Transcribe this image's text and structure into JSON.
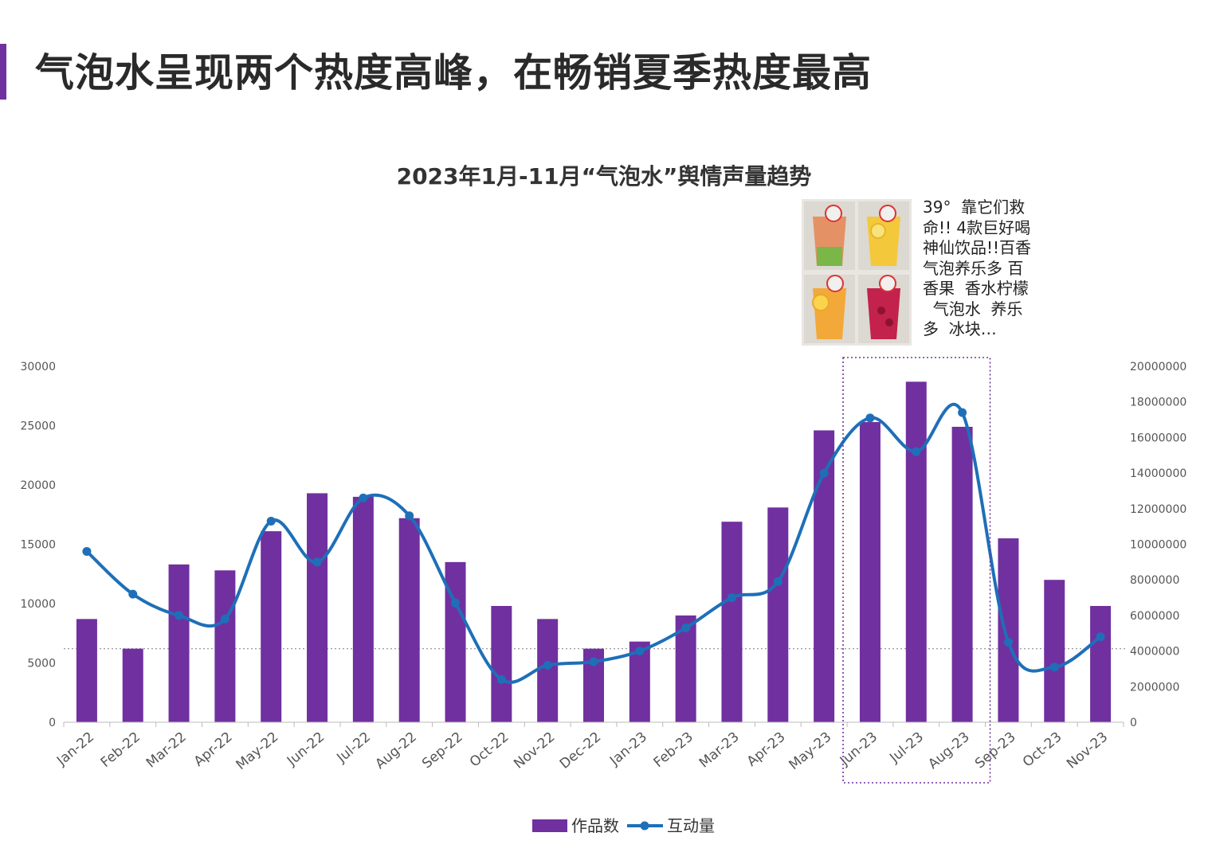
{
  "header": {
    "title": "气泡水呈现两个热度高峰，在畅销夏季热度最高",
    "accent_color": "#7030A0"
  },
  "annotation": {
    "caption": "39° 靠它们救命!! 4款巨好喝神仙饮品!!百香气泡养乐多 百香果 香水柠檬 气泡水 养乐多 冰块…",
    "image": "four-fruit-drinks-photo"
  },
  "chart_data": {
    "type": "bar+line",
    "title": "2023年1月-11月“气泡水”舆情声量趋势",
    "categories": [
      "Jan-22",
      "Feb-22",
      "Mar-22",
      "Apr-22",
      "May-22",
      "Jun-22",
      "Jul-22",
      "Aug-22",
      "Sep-22",
      "Oct-22",
      "Nov-22",
      "Dec-22",
      "Jan-23",
      "Feb-23",
      "Mar-23",
      "Apr-23",
      "May-23",
      "Jun-23",
      "Jul-23",
      "Aug-23",
      "Sep-23",
      "Oct-23",
      "Nov-23"
    ],
    "series": [
      {
        "name": "作品数",
        "type": "bar",
        "axis": "left",
        "color": "#7030A0",
        "values": [
          8700,
          6200,
          13300,
          12800,
          16100,
          19300,
          19000,
          17200,
          13500,
          9800,
          8700,
          6200,
          6800,
          9000,
          16900,
          18100,
          24600,
          25300,
          28700,
          24900,
          15500,
          12000,
          9800
        ]
      },
      {
        "name": "互动量",
        "type": "line",
        "axis": "right",
        "color": "#1E6FB8",
        "values": [
          9600000,
          7200000,
          6000000,
          5800000,
          11300000,
          9000000,
          12600000,
          11600000,
          6700000,
          2400000,
          3200000,
          3400000,
          4000000,
          5300000,
          7000000,
          7900000,
          14000000,
          17100000,
          15200000,
          17400000,
          4500000,
          3100000,
          4800000
        ]
      }
    ],
    "y_left": {
      "min": 0,
      "max": 30000,
      "ticks": [
        "0",
        "5000",
        "10000",
        "15000",
        "20000",
        "25000",
        "30000"
      ]
    },
    "y_right": {
      "min": 0,
      "max": 20000000,
      "ticks": [
        "0",
        "2000000",
        "4000000",
        "6000000",
        "8000000",
        "10000000",
        "12000000",
        "14000000",
        "16000000",
        "18000000",
        "20000000"
      ]
    },
    "reference_line_left_value": 6200,
    "highlight_categories": [
      "Jun-23",
      "Jul-23",
      "Aug-23"
    ],
    "legend": {
      "position": "bottom"
    },
    "grid": false
  }
}
